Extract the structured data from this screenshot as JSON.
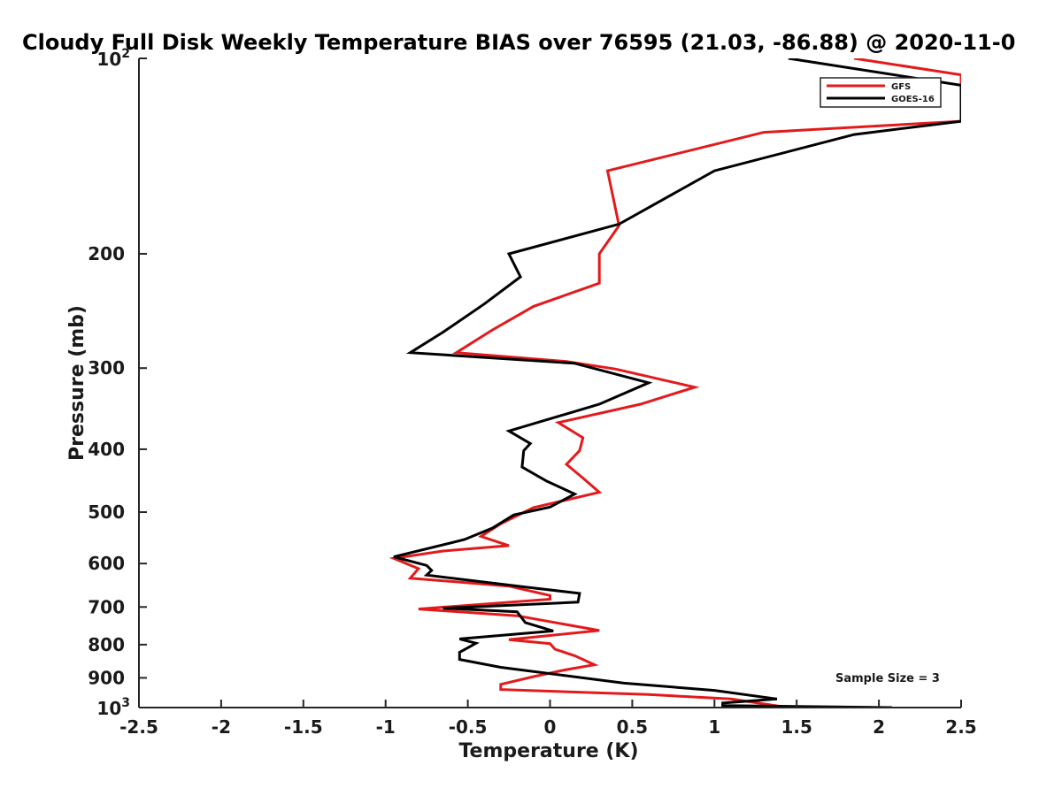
{
  "chart_data": {
    "type": "line",
    "title": "Cloudy Full Disk Weekly Temperature BIAS over 76595 (21.03, -86.88) @ 2020-11-0",
    "xlabel": "Temperature (K)",
    "ylabel": "Pressure (mb)",
    "xlim": [
      -2.5,
      2.5
    ],
    "ylim": [
      100,
      1000
    ],
    "y_scale": "log",
    "y_reversed": true,
    "x_ticks": [
      -2.5,
      -2,
      -1.5,
      -1,
      -0.5,
      0,
      0.5,
      1,
      1.5,
      2,
      2.5
    ],
    "x_tick_labels": [
      "-2.5",
      "-2",
      "-1.5",
      "-1",
      "-0.5",
      "0",
      "0.5",
      "1",
      "1.5",
      "2",
      "2.5"
    ],
    "y_ticks": [
      200,
      300,
      400,
      500,
      600,
      700,
      800,
      900
    ],
    "y_tick_labels": [
      "200",
      "300",
      "400",
      "500",
      "600",
      "700",
      "800",
      "900"
    ],
    "y_top_label": {
      "base": "10",
      "exp": "2"
    },
    "y_bottom_label": {
      "base": "10",
      "exp": "3"
    },
    "legend_position": "top-right",
    "annotation": "Sample Size = 3",
    "series": [
      {
        "name": "GFS",
        "color": "#e31a1c",
        "points": [
          {
            "x": 1.85,
            "p": 100
          },
          {
            "x": 2.5,
            "p": 106
          },
          {
            "x": 2.5,
            "p": 125
          },
          {
            "x": 1.3,
            "p": 130
          },
          {
            "x": 0.35,
            "p": 149
          },
          {
            "x": 0.42,
            "p": 181
          },
          {
            "x": 0.3,
            "p": 200
          },
          {
            "x": 0.3,
            "p": 222
          },
          {
            "x": -0.1,
            "p": 241
          },
          {
            "x": -0.35,
            "p": 262
          },
          {
            "x": -0.57,
            "p": 284
          },
          {
            "x": 0.1,
            "p": 293
          },
          {
            "x": 0.4,
            "p": 301
          },
          {
            "x": 0.88,
            "p": 321
          },
          {
            "x": 0.55,
            "p": 341
          },
          {
            "x": 0.05,
            "p": 364
          },
          {
            "x": 0.2,
            "p": 384
          },
          {
            "x": 0.18,
            "p": 402
          },
          {
            "x": 0.1,
            "p": 422
          },
          {
            "x": 0.2,
            "p": 443
          },
          {
            "x": 0.3,
            "p": 466
          },
          {
            "x": -0.1,
            "p": 492
          },
          {
            "x": -0.3,
            "p": 521
          },
          {
            "x": -0.42,
            "p": 545
          },
          {
            "x": -0.25,
            "p": 563
          },
          {
            "x": -0.65,
            "p": 574
          },
          {
            "x": -0.95,
            "p": 589
          },
          {
            "x": -0.8,
            "p": 611
          },
          {
            "x": -0.85,
            "p": 632
          },
          {
            "x": -0.25,
            "p": 650
          },
          {
            "x": 0.0,
            "p": 672
          },
          {
            "x": 0.0,
            "p": 681
          },
          {
            "x": -0.8,
            "p": 705
          },
          {
            "x": -0.2,
            "p": 722
          },
          {
            "x": 0.3,
            "p": 761
          },
          {
            "x": -0.25,
            "p": 786
          },
          {
            "x": 0.0,
            "p": 797
          },
          {
            "x": 0.03,
            "p": 813
          },
          {
            "x": 0.15,
            "p": 832
          },
          {
            "x": 0.27,
            "p": 859
          },
          {
            "x": 0.1,
            "p": 874
          },
          {
            "x": -0.1,
            "p": 896
          },
          {
            "x": -0.3,
            "p": 921
          },
          {
            "x": -0.3,
            "p": 938
          },
          {
            "x": 0.6,
            "p": 955
          },
          {
            "x": 1.1,
            "p": 970
          },
          {
            "x": 1.45,
            "p": 1000
          }
        ]
      },
      {
        "name": "GOES-16",
        "color": "#000000",
        "points": [
          {
            "x": 1.45,
            "p": 100
          },
          {
            "x": 2.5,
            "p": 110
          },
          {
            "x": 2.5,
            "p": 125
          },
          {
            "x": 1.85,
            "p": 131
          },
          {
            "x": 1.0,
            "p": 149
          },
          {
            "x": 0.42,
            "p": 180
          },
          {
            "x": -0.25,
            "p": 200
          },
          {
            "x": -0.18,
            "p": 217
          },
          {
            "x": -0.4,
            "p": 239
          },
          {
            "x": -0.65,
            "p": 264
          },
          {
            "x": -0.85,
            "p": 284
          },
          {
            "x": 0.15,
            "p": 295
          },
          {
            "x": 0.6,
            "p": 316
          },
          {
            "x": 0.3,
            "p": 341
          },
          {
            "x": -0.25,
            "p": 375
          },
          {
            "x": -0.12,
            "p": 392
          },
          {
            "x": -0.16,
            "p": 402
          },
          {
            "x": -0.17,
            "p": 426
          },
          {
            "x": -0.02,
            "p": 448
          },
          {
            "x": 0.15,
            "p": 469
          },
          {
            "x": 0.0,
            "p": 491
          },
          {
            "x": -0.22,
            "p": 505
          },
          {
            "x": -0.35,
            "p": 529
          },
          {
            "x": -0.52,
            "p": 551
          },
          {
            "x": -0.95,
            "p": 586
          },
          {
            "x": -0.75,
            "p": 604
          },
          {
            "x": -0.72,
            "p": 615
          },
          {
            "x": -0.75,
            "p": 625
          },
          {
            "x": -0.15,
            "p": 652
          },
          {
            "x": 0.18,
            "p": 667
          },
          {
            "x": 0.17,
            "p": 688
          },
          {
            "x": -0.65,
            "p": 703
          },
          {
            "x": -0.2,
            "p": 712
          },
          {
            "x": -0.15,
            "p": 740
          },
          {
            "x": 0.02,
            "p": 762
          },
          {
            "x": -0.55,
            "p": 784
          },
          {
            "x": -0.45,
            "p": 796
          },
          {
            "x": -0.55,
            "p": 822
          },
          {
            "x": -0.55,
            "p": 843
          },
          {
            "x": -0.3,
            "p": 867
          },
          {
            "x": 0.45,
            "p": 917
          },
          {
            "x": 1.0,
            "p": 941
          },
          {
            "x": 1.38,
            "p": 970
          },
          {
            "x": 1.05,
            "p": 984
          },
          {
            "x": 1.05,
            "p": 993
          },
          {
            "x": 2.08,
            "p": 1000
          }
        ]
      }
    ]
  }
}
